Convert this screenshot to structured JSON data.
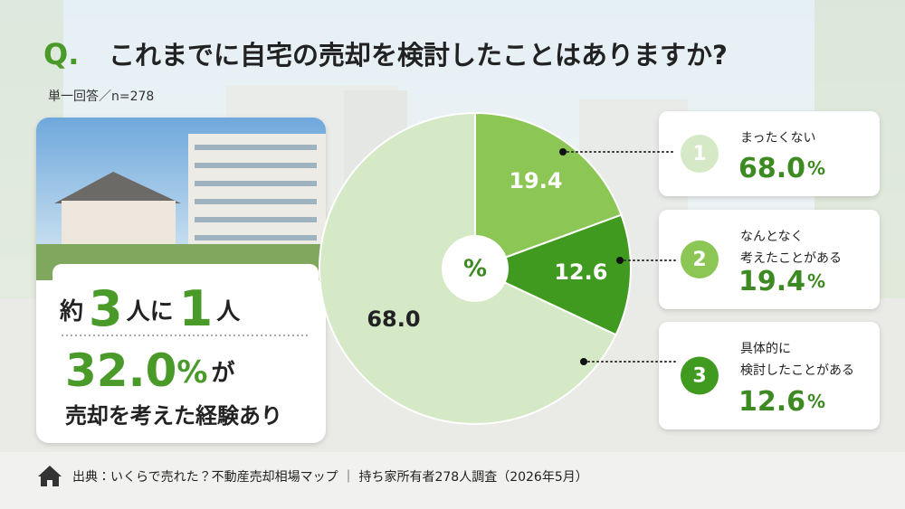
{
  "chart_data": {
    "type": "pie",
    "question_mark": "Q.",
    "title": "これまでに自宅の売却を検討したことはありますか?",
    "subtitle": "単一回答／n=278",
    "unit": "%",
    "ranks": [
      "1",
      "2",
      "3"
    ],
    "categories": [
      [
        "まったくない"
      ],
      [
        "なんとなく",
        "考えたことがある"
      ],
      [
        "具体的に",
        "検討したことがある"
      ]
    ],
    "values": [
      68.0,
      19.4,
      12.6
    ],
    "value_labels": [
      "68.0",
      "19.4",
      "12.6"
    ],
    "colors": [
      "#d5e9c6",
      "#8cc655",
      "#3f9a1f"
    ],
    "callout": {
      "prefix": "約",
      "num1": "3",
      "mid": "人に",
      "num2": "1",
      "suffix": "人",
      "percent": "32.0",
      "percent_unit": "%",
      "particle": "が",
      "text": "売却を考えた経験あり"
    },
    "source": "出典：いくらで売れた？不動産売却相場マップ ｜ 持ち家所有者278人調査（2026年5月）"
  }
}
